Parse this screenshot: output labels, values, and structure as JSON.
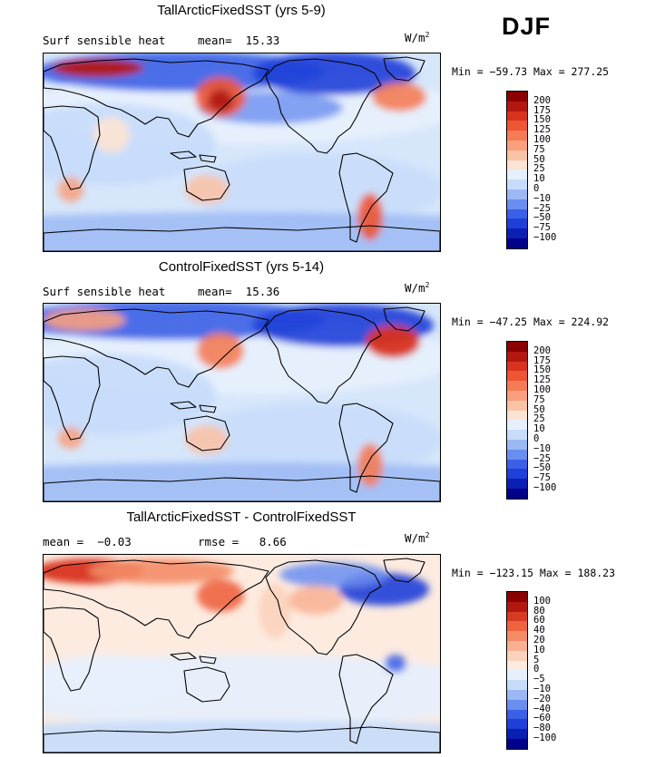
{
  "season": "DJF",
  "palette_abs": [
    "#00008b",
    "#0a1fb4",
    "#1e3fd8",
    "#3b5fe6",
    "#6a8ef0",
    "#9bb8f5",
    "#c7dcfb",
    "#e6f0fd",
    "#fde3d3",
    "#fbc3a6",
    "#f8a07e",
    "#f47c55",
    "#ee5533",
    "#d9321e",
    "#b31810",
    "#8b0000"
  ],
  "panels": [
    {
      "title": "TallArcticFixedSST (yrs 5-9)",
      "label_left": "Surf sensible heat",
      "label_mid": "mean=  15.33",
      "units": "W/m",
      "units_sup": "2",
      "minmax": "Min = −59.73 Max = 277.25",
      "colorbar_labels": [
        "200",
        "175",
        "150",
        "125",
        "100",
        "75",
        "50",
        "25",
        "10",
        "0",
        "−10",
        "−25",
        "−50",
        "−75",
        "−100"
      ],
      "map_variant": "abs1"
    },
    {
      "title": "ControlFixedSST (yrs 5-14)",
      "label_left": "Surf sensible heat",
      "label_mid": "mean=  15.36",
      "units": "W/m",
      "units_sup": "2",
      "minmax": "Min = −47.25 Max = 224.92",
      "colorbar_labels": [
        "200",
        "175",
        "150",
        "125",
        "100",
        "75",
        "50",
        "25",
        "10",
        "0",
        "−10",
        "−25",
        "−50",
        "−75",
        "−100"
      ],
      "map_variant": "abs2"
    },
    {
      "title": "TallArcticFixedSST - ControlFixedSST",
      "label_left": "mean =  −0.03",
      "label_mid": "rmse =   8.66",
      "units": "W/m",
      "units_sup": "2",
      "minmax": "Min = −123.15 Max = 188.23",
      "colorbar_labels": [
        "100",
        "80",
        "60",
        "40",
        "20",
        "10",
        "5",
        "0",
        "−5",
        "−10",
        "−20",
        "−40",
        "−60",
        "−80",
        "−100"
      ],
      "map_variant": "diff"
    }
  ],
  "chart_data": [
    {
      "type": "heatmap",
      "title": "TallArcticFixedSST (yrs 5-9)",
      "variable": "Surf sensible heat",
      "season": "DJF",
      "units": "W/m2",
      "mean": 15.33,
      "min": -59.73,
      "max": 277.25,
      "contour_levels": [
        -100,
        -75,
        -50,
        -25,
        -10,
        0,
        10,
        25,
        50,
        75,
        100,
        125,
        150,
        175,
        200
      ]
    },
    {
      "type": "heatmap",
      "title": "ControlFixedSST (yrs 5-14)",
      "variable": "Surf sensible heat",
      "season": "DJF",
      "units": "W/m2",
      "mean": 15.36,
      "min": -47.25,
      "max": 224.92,
      "contour_levels": [
        -100,
        -75,
        -50,
        -25,
        -10,
        0,
        10,
        25,
        50,
        75,
        100,
        125,
        150,
        175,
        200
      ]
    },
    {
      "type": "heatmap",
      "title": "TallArcticFixedSST - ControlFixedSST",
      "season": "DJF",
      "units": "W/m2",
      "mean": -0.03,
      "rmse": 8.66,
      "min": -123.15,
      "max": 188.23,
      "contour_levels": [
        -100,
        -80,
        -60,
        -40,
        -20,
        -10,
        -5,
        0,
        5,
        10,
        20,
        40,
        60,
        80,
        100
      ]
    }
  ]
}
